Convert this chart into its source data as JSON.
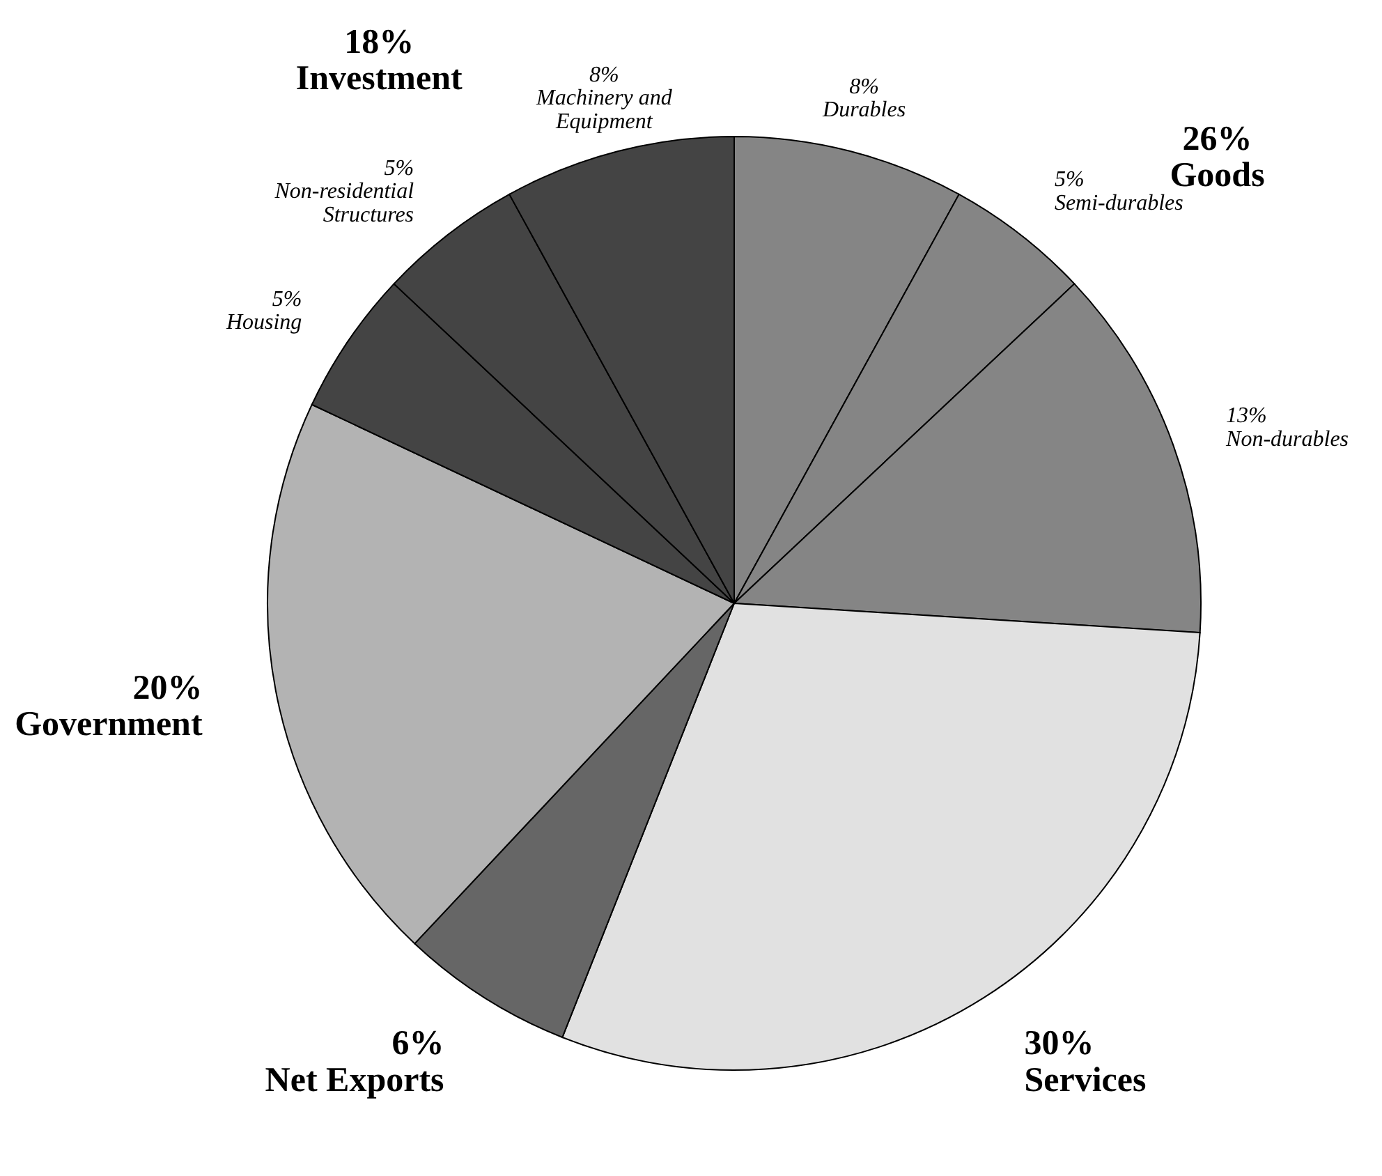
{
  "chart_data": {
    "type": "pie",
    "categories": [
      "Durables",
      "Semi-durables",
      "Non-durables",
      "Services",
      "Net Exports",
      "Government",
      "Housing",
      "Non-residential Structures",
      "Machinery and Equipment"
    ],
    "values": [
      8,
      5,
      13,
      30,
      6,
      20,
      5,
      5,
      8
    ],
    "value_labels": [
      "8%",
      "5%",
      "13%",
      "30%",
      "6%",
      "20%",
      "5%",
      "5%",
      "8%"
    ],
    "colors": [
      "#858585",
      "#858585",
      "#858585",
      "#e1e1e1",
      "#666666",
      "#b3b3b3",
      "#444444",
      "#444444",
      "#444444"
    ],
    "annotations": [
      "26% Goods",
      "18% Investment"
    ]
  }
}
